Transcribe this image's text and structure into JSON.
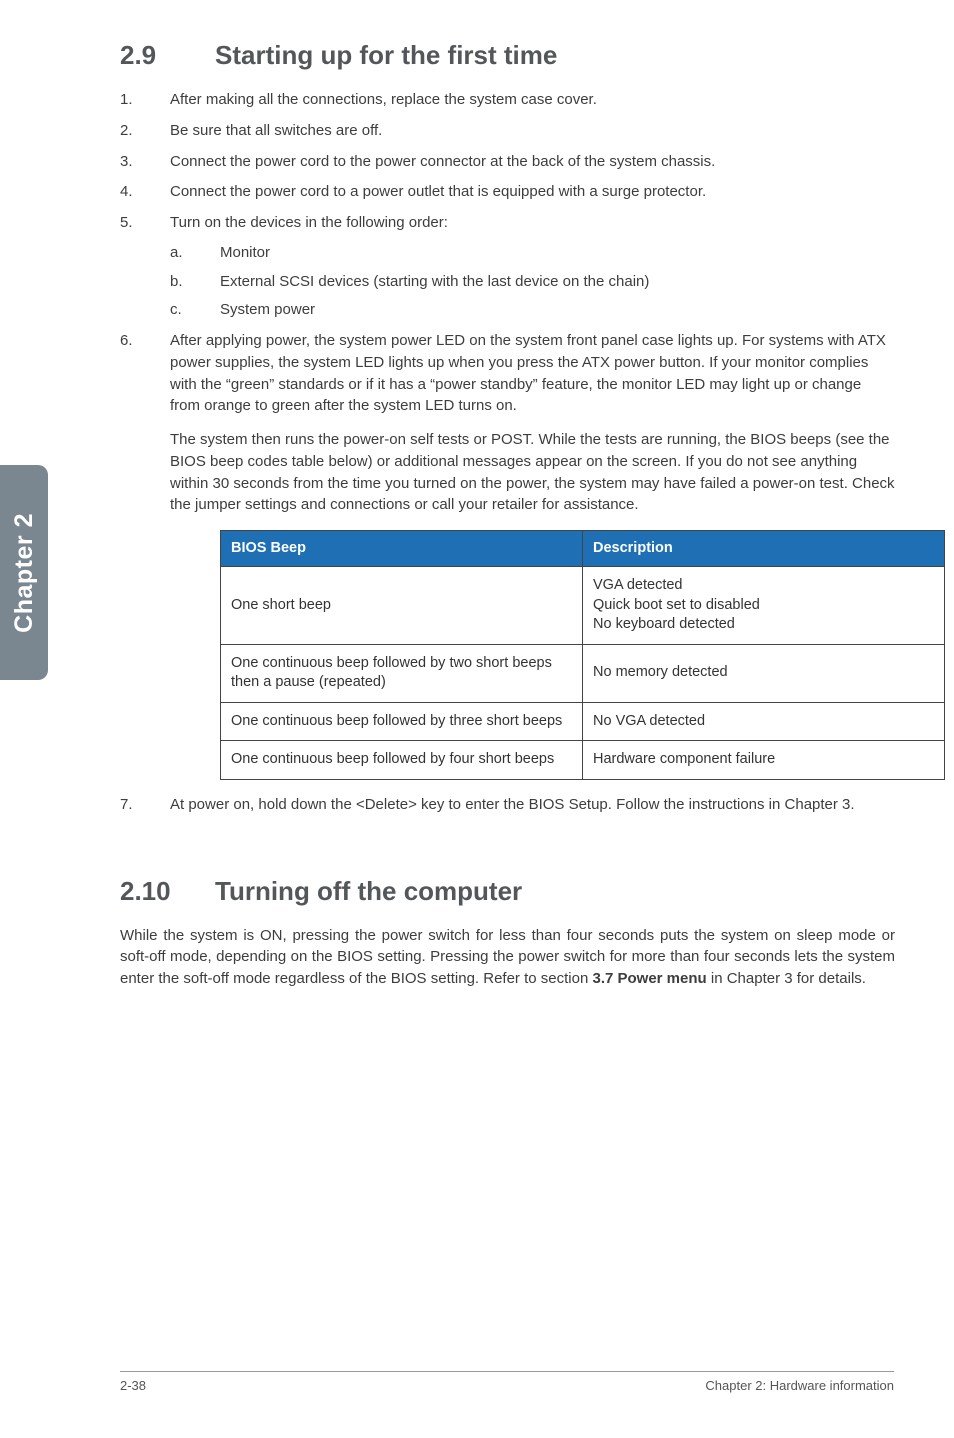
{
  "sideTab": "Chapter 2",
  "section29": {
    "number": "2.9",
    "title": "Starting up for the first time",
    "steps": [
      "After making all the connections, replace the system case cover.",
      "Be sure that all switches are off.",
      "Connect the power cord to the power connector at the back of the system chassis.",
      "Connect the power cord to a power outlet that is equipped with a surge protector.",
      "Turn on the devices in the following order:"
    ],
    "substeps": [
      {
        "lett": "a.",
        "text": "Monitor"
      },
      {
        "lett": "b.",
        "text": "External SCSI devices (starting with the last device on the chain)"
      },
      {
        "lett": "c.",
        "text": "System power"
      }
    ],
    "step6a": "After applying power, the system power LED on the system front panel case lights up. For systems with ATX power supplies, the system LED lights up when you press the ATX power button. If your monitor complies with the “green” standards or if it has a “power standby” feature, the monitor LED may light up or change from orange to green after the system LED turns on.",
    "step6b": "The system then runs the power-on self tests or POST. While the tests are running, the BIOS beeps (see the BIOS beep codes table below) or additional messages appear on the screen. If you do not see anything within 30 seconds from the time you turned on the power, the system may have failed a power-on test. Check the jumper settings and connections or call your retailer for assistance.",
    "table": {
      "headers": [
        "BIOS Beep",
        "Description"
      ],
      "rows": [
        [
          "One short beep",
          "VGA detected\nQuick boot set to disabled\nNo keyboard detected"
        ],
        [
          "One continuous beep followed by two short beeps then a pause (repeated)",
          "No memory detected"
        ],
        [
          "One continuous beep followed by three short beeps",
          "No VGA detected"
        ],
        [
          "One continuous beep followed by four short beeps",
          "Hardware component failure"
        ]
      ]
    },
    "step7": "At power on, hold down the <Delete> key to enter the BIOS Setup. Follow the instructions in Chapter 3."
  },
  "section210": {
    "number": "2.10",
    "title": "Turning off the computer",
    "body_pre": "While the system is ON, pressing the power switch for less than four seconds puts the system on sleep mode or soft-off mode, depending on the BIOS setting. Pressing the power switch for more than four seconds lets the system enter the soft-off mode regardless of the BIOS setting. Refer to section ",
    "body_bold": "3.7 Power menu",
    "body_post": " in Chapter 3 for details."
  },
  "footer": {
    "left": "2-38",
    "right": "Chapter 2: Hardware information"
  }
}
